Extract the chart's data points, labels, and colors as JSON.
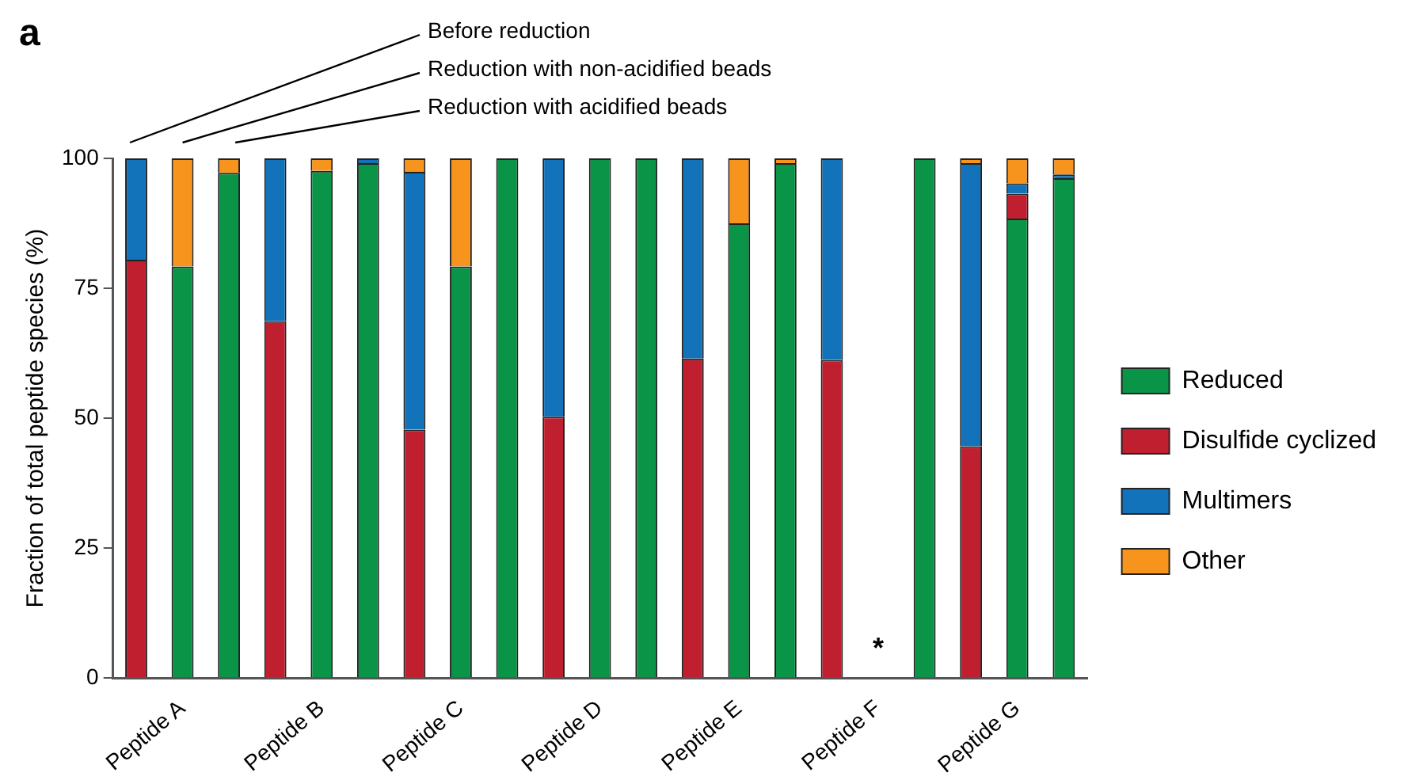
{
  "chart_data": {
    "type": "bar",
    "title": "a",
    "ylabel": "Fraction of total peptide species (%)",
    "stacked": true,
    "categories": [
      null,
      "Peptide A",
      null,
      null,
      "Peptide B",
      null,
      null,
      "Peptide C",
      null,
      null,
      "Peptide D",
      null,
      null,
      "Peptide E",
      null,
      null,
      "Peptide F",
      null,
      null,
      "Peptide G",
      null
    ],
    "series": [
      {
        "name": "Reduced",
        "color": "#0a9447",
        "values": [
          null,
          79.2,
          97.2,
          null,
          97.6,
          99.1,
          null,
          79.2,
          100,
          null,
          100,
          100,
          null,
          87.5,
          99.1,
          null,
          null,
          100,
          null,
          88.4,
          96.2
        ]
      },
      {
        "name": "Disulfide cyclized",
        "color": "#c01f30",
        "values": [
          80.5,
          null,
          null,
          68.7,
          null,
          null,
          47.8,
          null,
          null,
          50.3,
          null,
          null,
          61.5,
          null,
          null,
          61.2,
          null,
          null,
          44.6,
          4.8,
          null
        ]
      },
      {
        "name": "Multimers",
        "color": "#1273bb",
        "values": [
          19.5,
          null,
          null,
          31.3,
          null,
          0.9,
          49.6,
          null,
          null,
          49.7,
          null,
          null,
          38.5,
          null,
          null,
          38.8,
          null,
          null,
          54.5,
          2.0,
          0.7
        ]
      },
      {
        "name": "Other",
        "color": "#f7941d",
        "values": [
          null,
          20.8,
          2.8,
          null,
          2.4,
          null,
          2.6,
          20.8,
          null,
          null,
          null,
          null,
          null,
          12.5,
          0.9,
          null,
          null,
          null,
          0.9,
          4.8,
          3.1
        ]
      }
    ],
    "ylim": [
      0,
      100
    ],
    "yticks": [
      0,
      25,
      50,
      75,
      100
    ],
    "grid": false,
    "legend": "right",
    "annotations": [
      "Before reduction",
      "Reduction with non-acidified beads",
      "Reduction with acidified beads",
      "*"
    ]
  }
}
